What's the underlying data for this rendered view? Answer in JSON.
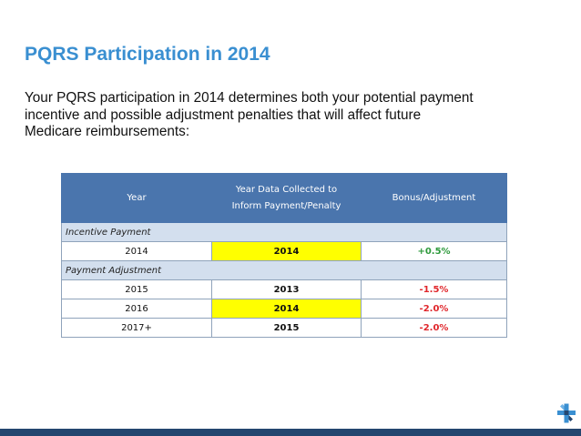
{
  "slide": {
    "title": "PQRS Participation in 2014",
    "intro_lines": [
      "Your PQRS participation in 2014 determines both your potential payment",
      "incentive and possible adjustment penalties that will affect future",
      "Medicare reimbursements:"
    ]
  },
  "table": {
    "headers": {
      "year": "Year",
      "collected_line1": "Year Data Collected to",
      "collected_line2": "Inform Payment/Penalty",
      "bonus": "Bonus/Adjustment"
    },
    "sections": [
      {
        "label": "Incentive Payment",
        "rows": [
          {
            "year": "2014",
            "collected": "2014",
            "bonus": "+0.5%",
            "highlight": true
          }
        ]
      },
      {
        "label": "Payment Adjustment",
        "rows": [
          {
            "year": "2015",
            "collected": "2013",
            "bonus": "-1.5%",
            "highlight": false
          },
          {
            "year": "2016",
            "collected": "2014",
            "bonus": "-2.0%",
            "highlight": true
          },
          {
            "year": "2017+",
            "collected": "2015",
            "bonus": "-2.0%",
            "highlight": false
          }
        ]
      }
    ]
  },
  "colors": {
    "title": "#3a8fd1",
    "table_header": "#4a75ad",
    "section_row": "#d3dfee",
    "highlight": "#ffff00",
    "positive": "#2e9a3c",
    "negative": "#e0262b",
    "footer": "#24466f"
  },
  "icons": {
    "logo": "plus-cross-logo-icon"
  }
}
